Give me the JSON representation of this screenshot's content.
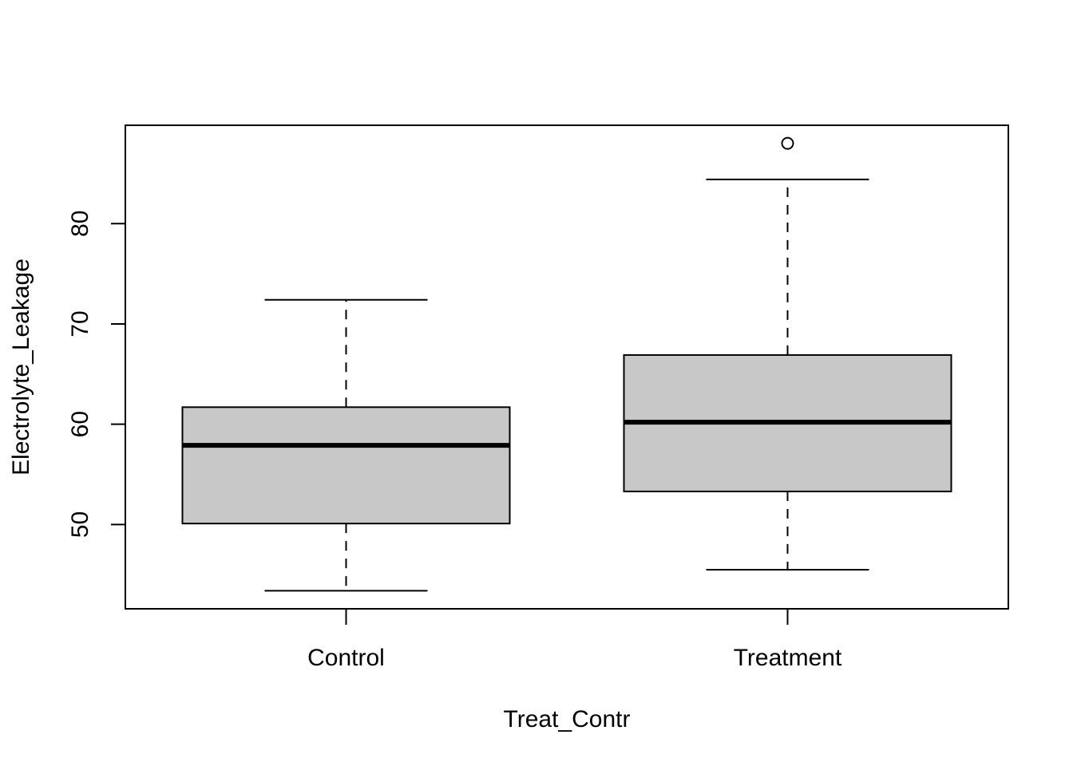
{
  "chart_data": {
    "type": "boxplot",
    "title": "",
    "xlabel": "Treat_Contr",
    "ylabel": "Electrolyte_Leakage",
    "ylim": [
      41.6,
      89.8
    ],
    "yticks": [
      50,
      60,
      70,
      80
    ],
    "categories": [
      "Control",
      "Treatment"
    ],
    "boxes": [
      {
        "category": "Control",
        "whisker_low": 43.4,
        "q1": 50.1,
        "median": 57.9,
        "q3": 61.7,
        "whisker_high": 72.4,
        "outliers": []
      },
      {
        "category": "Treatment",
        "whisker_low": 45.5,
        "q1": 53.3,
        "median": 60.2,
        "q3": 66.9,
        "whisker_high": 84.4,
        "outliers": [
          88.0
        ]
      }
    ],
    "grid": false,
    "legend": "none",
    "box_fill": "#c8c8c8",
    "line_color": "#000000"
  }
}
